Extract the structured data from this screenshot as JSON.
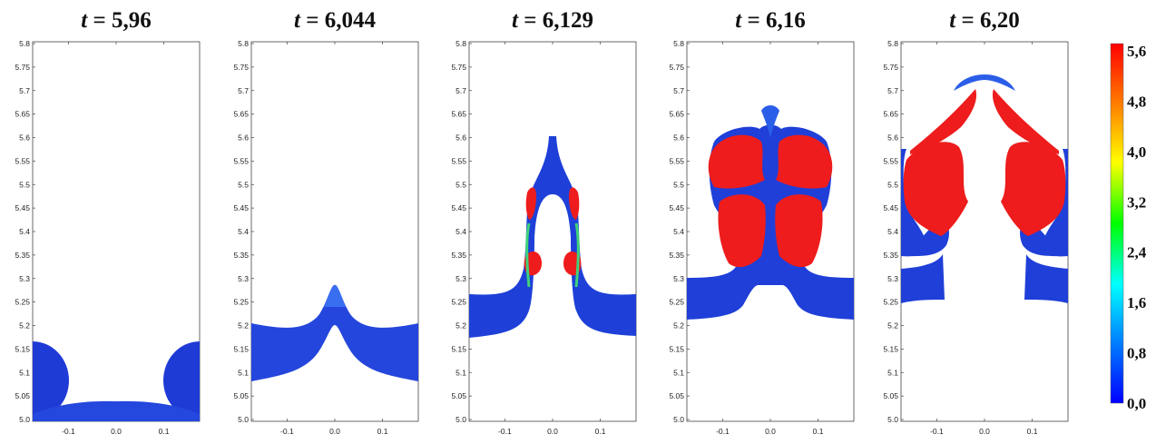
{
  "chart_data": [
    {
      "type": "heatmap",
      "title": "t = 5,96",
      "title_italic": "t",
      "title_rest": " = 5,96",
      "x_ticks": [
        "-0.1",
        "0.0",
        "0.1"
      ],
      "y_ticks": [
        "5.8",
        "5.75",
        "5.7",
        "5.65",
        "5.6",
        "5.55",
        "5.5",
        "5.45",
        "5.4",
        "5.35",
        "5.3",
        "5.25",
        "5.2",
        "5.15",
        "5.1",
        "5.05",
        "5.0"
      ],
      "xlim": [
        -0.175,
        0.175
      ],
      "ylim": [
        5.0,
        5.8
      ]
    },
    {
      "type": "heatmap",
      "title": "t = 6,044",
      "title_italic": "t",
      "title_rest": " = 6,044",
      "x_ticks": [
        "-0.1",
        "0.0",
        "0.1"
      ],
      "y_ticks": [
        "5.8",
        "5.75",
        "5.7",
        "5.65",
        "5.6",
        "5.55",
        "5.5",
        "5.45",
        "5.4",
        "5.35",
        "5.3",
        "5.25",
        "5.2",
        "5.15",
        "5.1",
        "5.05",
        "5.0"
      ],
      "xlim": [
        -0.175,
        0.175
      ],
      "ylim": [
        5.0,
        5.8
      ]
    },
    {
      "type": "heatmap",
      "title": "t = 6,129",
      "title_italic": "t",
      "title_rest": " = 6,129",
      "x_ticks": [
        "-0.1",
        "0.0",
        "0.1"
      ],
      "y_ticks": [
        "5.8",
        "5.75",
        "5.7",
        "5.65",
        "5.6",
        "5.55",
        "5.5",
        "5.45",
        "5.4",
        "5.35",
        "5.3",
        "5.25",
        "5.2",
        "5.15",
        "5.1",
        "5.05",
        "5.0"
      ],
      "xlim": [
        -0.175,
        0.175
      ],
      "ylim": [
        5.0,
        5.8
      ]
    },
    {
      "type": "heatmap",
      "title": "t = 6,16",
      "title_italic": "t",
      "title_rest": " = 6,16",
      "x_ticks": [
        "-0.1",
        "0.0",
        "0.1"
      ],
      "y_ticks": [
        "5.8",
        "5.75",
        "5.7",
        "5.65",
        "5.6",
        "5.55",
        "5.5",
        "5.45",
        "5.4",
        "5.35",
        "5.3",
        "5.25",
        "5.2",
        "5.15",
        "5.1",
        "5.05",
        "5.0"
      ],
      "xlim": [
        -0.175,
        0.175
      ],
      "ylim": [
        5.0,
        5.8
      ]
    },
    {
      "type": "heatmap",
      "title": "t = 6,20",
      "title_italic": "t",
      "title_rest": " = 6,20",
      "x_ticks": [
        "-0.1",
        "0.0",
        "0.1"
      ],
      "y_ticks": [
        "5.8",
        "5.75",
        "5.7",
        "5.65",
        "5.6",
        "5.55",
        "5.5",
        "5.45",
        "5.4",
        "5.35",
        "5.3",
        "5.25",
        "5.2",
        "5.15",
        "5.1",
        "5.05",
        "5.0"
      ],
      "xlim": [
        -0.175,
        0.175
      ],
      "ylim": [
        5.0,
        5.8
      ]
    }
  ],
  "colorbar": {
    "labels": [
      "5,6",
      "4,8",
      "4,0",
      "3,2",
      "2,4",
      "1,6",
      "0,8",
      "0,0"
    ],
    "range": [
      0.0,
      5.6
    ],
    "stops": [
      "#ff0000",
      "#ff7f00",
      "#ffff00",
      "#00ff00",
      "#00ffff",
      "#0080ff",
      "#0000ff"
    ]
  },
  "colors": {
    "low": "#1f3fd9",
    "mid_low": "#2a6ae8",
    "high": "#ee1c1c",
    "transition": "#3fcf6a"
  }
}
